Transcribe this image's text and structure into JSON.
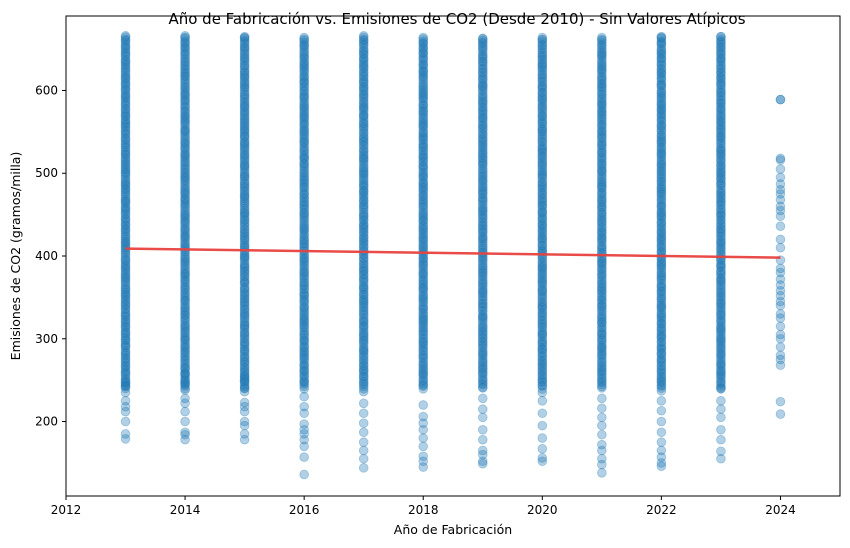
{
  "chart_data": {
    "type": "scatter",
    "title": "Año de Fabricación vs. Emisiones de CO2 (Desde 2010) - Sin Valores Atípicos",
    "xlabel": "Año de Fabricación",
    "ylabel": "Emisiones de CO2 (gramos/milla)",
    "xlim": [
      2012,
      2025
    ],
    "ylim": [
      110,
      690
    ],
    "xticks": [
      2012,
      2014,
      2016,
      2018,
      2020,
      2022,
      2024
    ],
    "yticks": [
      200,
      300,
      400,
      500,
      600
    ],
    "grid": false,
    "legend": "none",
    "point_color": "#1f77b4",
    "trend_color": "#e8413e",
    "series": [
      {
        "type": "scatter",
        "columns": [
          {
            "x": 2013,
            "min": 179,
            "max": 666,
            "extra": [
              179,
              185,
              200,
              212,
              218,
              225,
              235,
              243,
              247
            ]
          },
          {
            "x": 2014,
            "min": 178,
            "max": 666,
            "extra": [
              178,
              184,
              187,
              200,
              212,
              222,
              228,
              238,
              247,
              258
            ]
          },
          {
            "x": 2015,
            "min": 178,
            "max": 665,
            "extra": [
              178,
              185,
              195,
              200,
              212,
              218,
              223,
              236,
              240,
              250,
              255
            ]
          },
          {
            "x": 2016,
            "min": 136,
            "max": 664,
            "extra": [
              136,
              157,
              170,
              178,
              185,
              190,
              197,
              210,
              218,
              230
            ]
          },
          {
            "x": 2017,
            "min": 144,
            "max": 666,
            "extra": [
              144,
              155,
              165,
              175,
              187,
              198,
              210,
              222,
              236
            ]
          },
          {
            "x": 2018,
            "min": 145,
            "max": 664,
            "extra": [
              145,
              152,
              158,
              170,
              180,
              190,
              198,
              206,
              220
            ]
          },
          {
            "x": 2019,
            "min": 149,
            "max": 663,
            "extra": [
              149,
              152,
              160,
              165,
              178,
              190,
              205,
              215,
              228
            ]
          },
          {
            "x": 2020,
            "min": 152,
            "max": 664,
            "extra": [
              152,
              156,
              167,
              180,
              195,
              210,
              225,
              235
            ]
          },
          {
            "x": 2021,
            "min": 138,
            "max": 664,
            "extra": [
              138,
              148,
              155,
              165,
              172,
              184,
              195,
              205,
              216,
              228
            ]
          },
          {
            "x": 2022,
            "min": 146,
            "max": 665,
            "extra": [
              146,
              150,
              157,
              165,
              175,
              187,
              200,
              213,
              225,
              237
            ]
          },
          {
            "x": 2023,
            "min": 155,
            "max": 665,
            "extra": [
              155,
              164,
              178,
              190,
              205,
              215,
              225,
              240
            ]
          },
          {
            "x": 2024,
            "min": 209,
            "max": 589,
            "extra": [
              209,
              224,
              268,
              275,
              280,
              290,
              300,
              305,
              315,
              325,
              330,
              340,
              345,
              352,
              358,
              365,
              372,
              380,
              385,
              395,
              410,
              420,
              436,
              448,
              455,
              460,
              468,
              475,
              480,
              487,
              495,
              505,
              516,
              518,
              589
            ]
          }
        ]
      },
      {
        "type": "line",
        "x": [
          2013,
          2024
        ],
        "y": [
          409,
          398
        ]
      }
    ]
  }
}
